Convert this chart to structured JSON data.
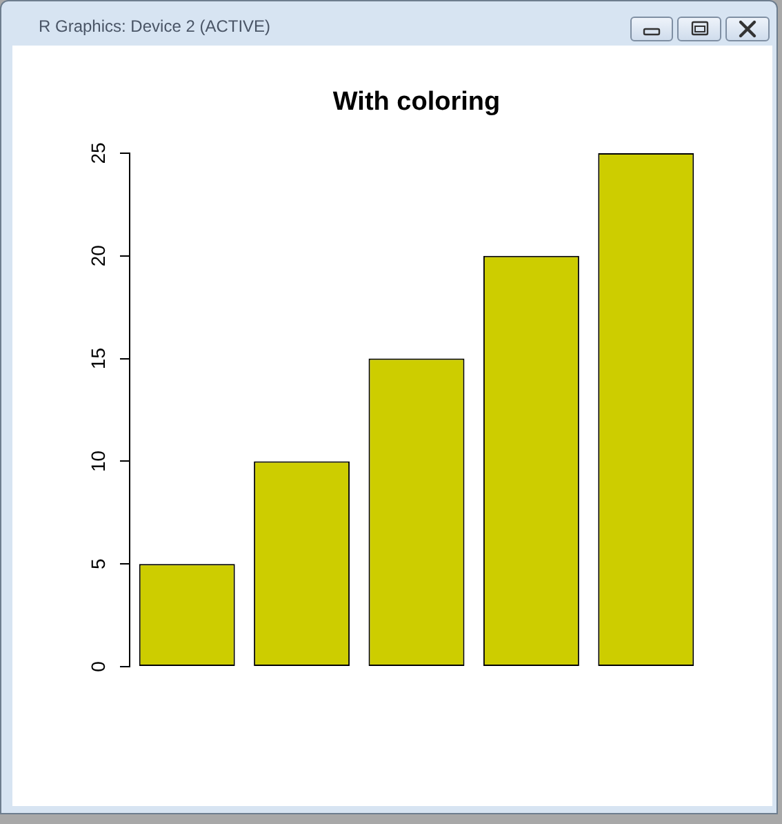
{
  "chart_data": {
    "type": "bar",
    "title": "With coloring",
    "categories": [
      null,
      null,
      null,
      null,
      null
    ],
    "values": [
      5,
      10,
      15,
      20,
      25
    ],
    "color": "#cdcd00",
    "ylim": [
      0,
      25
    ],
    "yticks": [
      0,
      5,
      10,
      15,
      20,
      25
    ],
    "grid": false,
    "legend": false,
    "annotations": [
      "R Graphics: Device 2 (ACTIVE)"
    ]
  }
}
